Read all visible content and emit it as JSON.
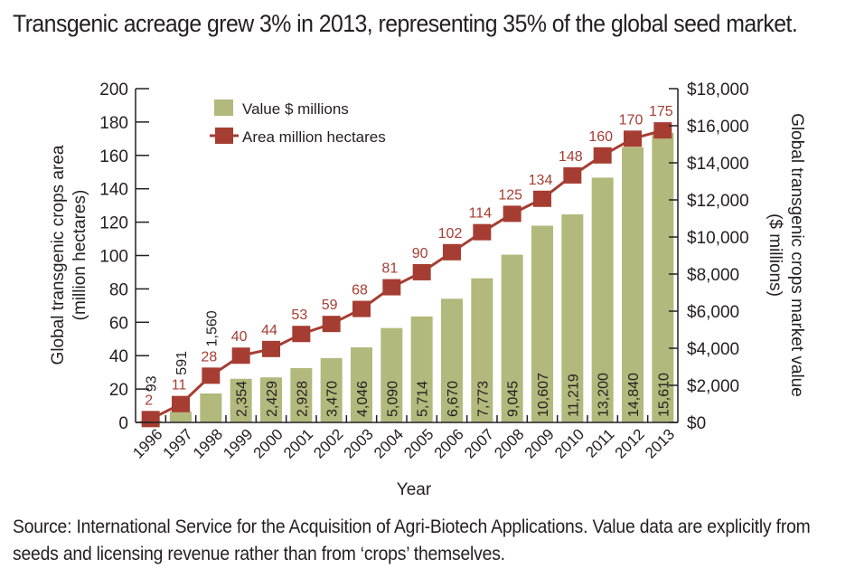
{
  "title": "Transgenic acreage grew 3% in 2013, representing 35% of the global seed market.",
  "source": "Source: International Service for the Acquisition of Agri-Biotech Applications. Value data are explicitly from seeds and licensing revenue rather than from ‘crops’ themselves.",
  "colors": {
    "bar": "#b3b87c",
    "line": "#a63d32",
    "label_red": "#a63d32",
    "text": "#231f20"
  },
  "chart_data": {
    "type": "bar+line",
    "title": "Transgenic acreage grew 3% in 2013, representing 35% of the global seed market.",
    "xlabel": "Year",
    "ylabel_left": "Global transgenic crops area\n(million hectares)",
    "ylabel_left_lines": [
      "Global transgenic crops area",
      "(million hectares)"
    ],
    "ylabel_right_lines": [
      "Global transgenic crops market value",
      "($ millions)"
    ],
    "categories": [
      "1996",
      "1997",
      "1998",
      "1999",
      "2000",
      "2001",
      "2002",
      "2003",
      "2004",
      "2005",
      "2006",
      "2007",
      "2008",
      "2009",
      "2010",
      "2011",
      "2012",
      "2013"
    ],
    "series": [
      {
        "name": "Value $ millions",
        "type": "bar",
        "axis": "right",
        "values": [
          93,
          591,
          1560,
          2354,
          2429,
          2928,
          3470,
          4046,
          5090,
          5714,
          6670,
          7773,
          9045,
          10607,
          11219,
          13200,
          14840,
          15610
        ],
        "labels": [
          "93",
          "591",
          "1,560",
          "2,354",
          "2,429",
          "2,928",
          "3,470",
          "4,046",
          "5,090",
          "5,714",
          "6,670",
          "7,773",
          "9,045",
          "10,607",
          "11,219",
          "13,200",
          "14,840",
          "15,610"
        ]
      },
      {
        "name": "Area million hectares",
        "type": "line",
        "axis": "left",
        "values": [
          2,
          11,
          28,
          40,
          44,
          53,
          59,
          68,
          81,
          90,
          102,
          114,
          125,
          134,
          148,
          160,
          170,
          175
        ],
        "labels": [
          "2",
          "11",
          "28",
          "40",
          "44",
          "53",
          "59",
          "68",
          "81",
          "90",
          "102",
          "114",
          "125",
          "134",
          "148",
          "160",
          "170",
          "175"
        ]
      }
    ],
    "ylim_left": [
      0,
      200
    ],
    "yticks_left": [
      "0",
      "20",
      "40",
      "60",
      "80",
      "100",
      "120",
      "140",
      "160",
      "180",
      "200"
    ],
    "ylim_right": [
      0,
      18000
    ],
    "yticks_right": [
      "$0",
      "$2,000",
      "$4,000",
      "$6,000",
      "$8,000",
      "$10,000",
      "$12,000",
      "$14,000",
      "$16,000",
      "$18,000"
    ],
    "legend": {
      "position": "top-left",
      "entries": [
        "Value $ millions",
        "Area million hectares"
      ]
    },
    "grid": false
  }
}
